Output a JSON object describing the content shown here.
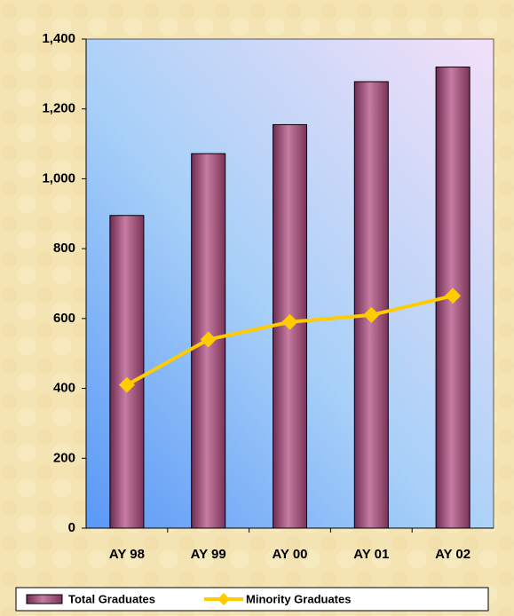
{
  "chart_data": {
    "type": "bar",
    "categories": [
      "AY 98",
      "AY 99",
      "AY 00",
      "AY 01",
      "AY 02"
    ],
    "series": [
      {
        "name": "Total Graduates",
        "type": "bar",
        "color": "#a8587f",
        "values": [
          895,
          1072,
          1155,
          1278,
          1320
        ]
      },
      {
        "name": "Minority Graduates",
        "type": "line",
        "color": "#ffcc00",
        "values": [
          410,
          540,
          590,
          610,
          665
        ]
      }
    ],
    "ylim": [
      0,
      1400
    ],
    "yticks": [
      0,
      200,
      400,
      600,
      800,
      {
        "value": 1000,
        "label": "1,000"
      },
      {
        "value": 1200,
        "label": "1,200"
      },
      {
        "value": 1400,
        "label": "1,400"
      }
    ],
    "legend": "bottom"
  }
}
